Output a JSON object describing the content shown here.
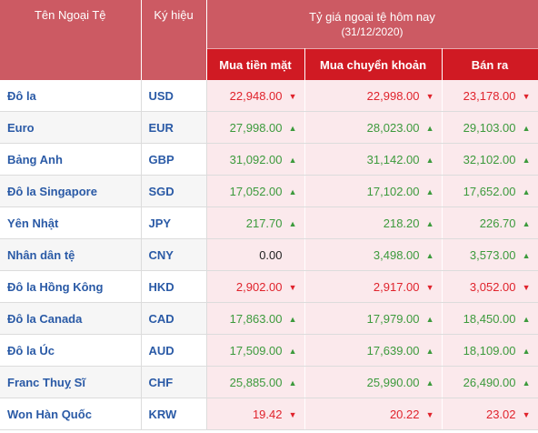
{
  "header": {
    "col_name": "Tên Ngoại Tệ",
    "col_code": "Ký hiệu",
    "group_title": "Tỷ giá ngoại tệ hôm nay",
    "group_date": "(31/12/2020)",
    "col_cash_buy": "Mua tiền mặt",
    "col_transfer_buy": "Mua chuyển khoản",
    "col_sell": "Bán ra"
  },
  "colors": {
    "header_bg": "#cc5a63",
    "subheader_bg": "#d01a23",
    "up": "#3c9a3c",
    "down": "#e0232c",
    "rate_cell_bg": "#fbe9ec",
    "name_text": "#2a5aa6"
  },
  "rows": [
    {
      "name": "Đô la",
      "code": "USD",
      "cash": "22,948.00",
      "cash_dir": "down",
      "transfer": "22,998.00",
      "transfer_dir": "down",
      "sell": "23,178.00",
      "sell_dir": "down"
    },
    {
      "name": "Euro",
      "code": "EUR",
      "cash": "27,998.00",
      "cash_dir": "up",
      "transfer": "28,023.00",
      "transfer_dir": "up",
      "sell": "29,103.00",
      "sell_dir": "up"
    },
    {
      "name": "Bảng Anh",
      "code": "GBP",
      "cash": "31,092.00",
      "cash_dir": "up",
      "transfer": "31,142.00",
      "transfer_dir": "up",
      "sell": "32,102.00",
      "sell_dir": "up"
    },
    {
      "name": "Đô la Singapore",
      "code": "SGD",
      "cash": "17,052.00",
      "cash_dir": "up",
      "transfer": "17,102.00",
      "transfer_dir": "up",
      "sell": "17,652.00",
      "sell_dir": "up"
    },
    {
      "name": "Yên Nhật",
      "code": "JPY",
      "cash": "217.70",
      "cash_dir": "up",
      "transfer": "218.20",
      "transfer_dir": "up",
      "sell": "226.70",
      "sell_dir": "up"
    },
    {
      "name": "Nhân dân tệ",
      "code": "CNY",
      "cash": "0.00",
      "cash_dir": "flat",
      "transfer": "3,498.00",
      "transfer_dir": "up",
      "sell": "3,573.00",
      "sell_dir": "up"
    },
    {
      "name": "Đô la Hồng Kông",
      "code": "HKD",
      "cash": "2,902.00",
      "cash_dir": "down",
      "transfer": "2,917.00",
      "transfer_dir": "down",
      "sell": "3,052.00",
      "sell_dir": "down"
    },
    {
      "name": "Đô la Canada",
      "code": "CAD",
      "cash": "17,863.00",
      "cash_dir": "up",
      "transfer": "17,979.00",
      "transfer_dir": "up",
      "sell": "18,450.00",
      "sell_dir": "up"
    },
    {
      "name": "Đô la Úc",
      "code": "AUD",
      "cash": "17,509.00",
      "cash_dir": "up",
      "transfer": "17,639.00",
      "transfer_dir": "up",
      "sell": "18,109.00",
      "sell_dir": "up"
    },
    {
      "name": "Franc Thuỵ Sĩ",
      "code": "CHF",
      "cash": "25,885.00",
      "cash_dir": "up",
      "transfer": "25,990.00",
      "transfer_dir": "up",
      "sell": "26,490.00",
      "sell_dir": "up"
    },
    {
      "name": "Won Hàn Quốc",
      "code": "KRW",
      "cash": "19.42",
      "cash_dir": "down",
      "transfer": "20.22",
      "transfer_dir": "down",
      "sell": "23.02",
      "sell_dir": "down"
    }
  ]
}
